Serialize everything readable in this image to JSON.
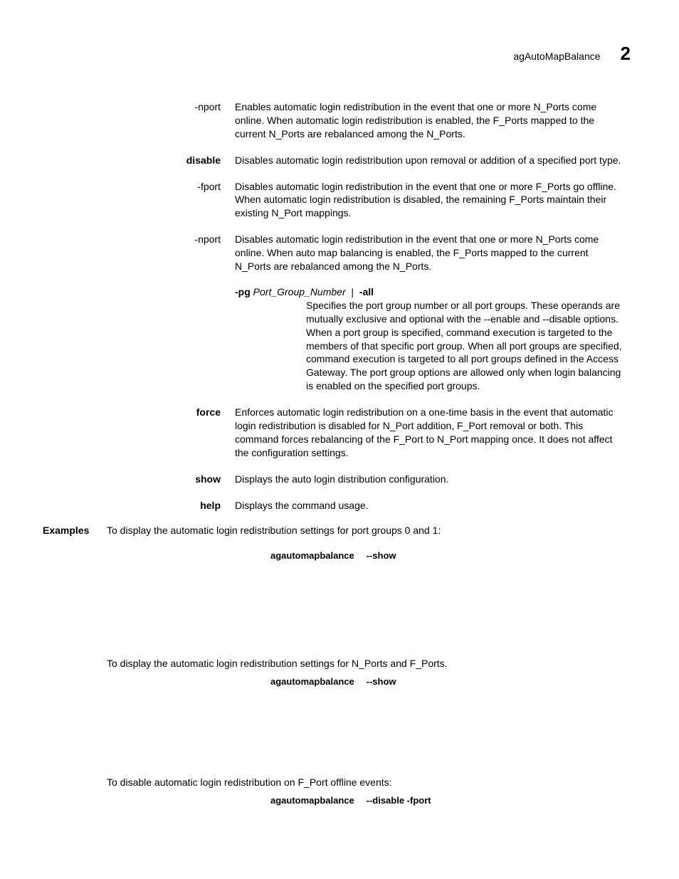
{
  "header": {
    "title": "agAutoMapBalance",
    "chapter": "2"
  },
  "params": [
    {
      "term": "-nport",
      "bold": false,
      "desc": "Enables automatic login redistribution in the event that one or more N_Ports come online. When automatic login redistribution is enabled, the F_Ports mapped to the current N_Ports are rebalanced among the N_Ports."
    },
    {
      "term": "disable",
      "bold": true,
      "desc": "Disables automatic login redistribution upon removal or addition of a specified port type."
    },
    {
      "term": "-fport",
      "bold": false,
      "desc": "Disables automatic login redistribution in the event that one or more F_Ports go offline. When automatic login redistribution is disabled, the remaining F_Ports maintain their existing N_Port mappings."
    },
    {
      "term": "-nport",
      "bold": false,
      "desc": "Disables automatic login redistribution in the event that one or more N_Ports come online. When auto map balancing is enabled, the F_Ports mapped to the current N_Ports are rebalanced among the N_Ports."
    }
  ],
  "pg": {
    "flag": "-pg",
    "arg": "Port_Group_Number",
    "sep": "|",
    "all": "-all",
    "desc_pre": "Specifies the port group number or all port groups. These operands are mutually exclusive and optional with the ",
    "enable": "--enable",
    "and": " and ",
    "disable": "--disable",
    "desc_post": " options. When a port group is specified, command execution is targeted to the members of that specific port group. When all port groups are specified, command execution is targeted to all port groups defined in the Access Gateway. The port group options are allowed only when login balancing is enabled on the specified port groups."
  },
  "params2": [
    {
      "term": "force",
      "bold": true,
      "desc": "Enforces automatic login redistribution on a one-time basis in the event that automatic login redistribution is disabled for N_Port addition, F_Port removal or both. This command forces rebalancing of the F_Port to N_Port mapping once. It does not affect the configuration settings."
    },
    {
      "term": "show",
      "bold": true,
      "desc": "Displays the auto login distribution configuration."
    },
    {
      "term": "help",
      "bold": true,
      "desc": "Displays the command usage."
    }
  ],
  "examples": {
    "label": "Examples",
    "ex1_intro": "To display the automatic login redistribution settings for port groups 0 and 1:",
    "ex1_cmd": "agautomapbalance",
    "ex1_arg": "--show",
    "ex2_intro": "To display the automatic login redistribution settings for N_Ports and F_Ports.",
    "ex2_cmd": "agautomapbalance",
    "ex2_arg": "--show",
    "ex3_intro": "To disable automatic login redistribution on F_Port offline events:",
    "ex3_cmd": "agautomapbalance",
    "ex3_arg": "--disable -fport"
  }
}
